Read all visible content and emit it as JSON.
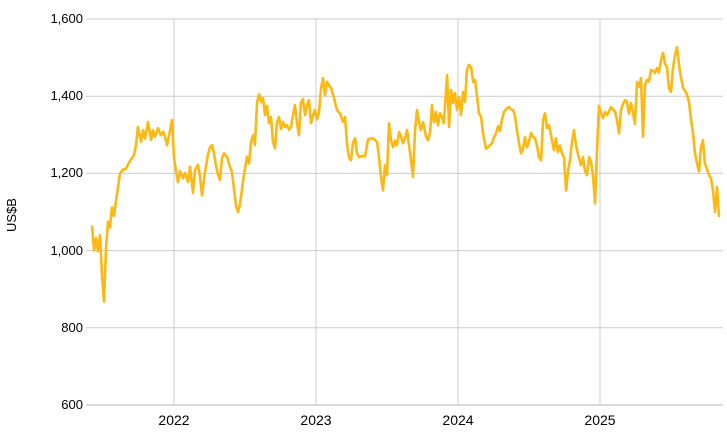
{
  "chart_data": {
    "type": "line",
    "title": "",
    "xlabel": "",
    "ylabel": "US$B",
    "ylim": [
      600,
      1600
    ],
    "xlim": [
      2021.38,
      2025.88
    ],
    "grid": true,
    "legend": false,
    "line_color": "#FCB813",
    "grid_color": "#cccccc",
    "axis_color": "#b5b5b5",
    "yticks": [
      {
        "label": "1,600",
        "value": 1600
      },
      {
        "label": "1,400",
        "value": 1400
      },
      {
        "label": "1,200",
        "value": 1200
      },
      {
        "label": "1,000",
        "value": 1000
      },
      {
        "label": "800",
        "value": 800
      },
      {
        "label": "600",
        "value": 600
      }
    ],
    "xticks": [
      {
        "label": "2022",
        "value": 2022
      },
      {
        "label": "2023",
        "value": 2023
      },
      {
        "label": "2024",
        "value": 2024
      },
      {
        "label": "2025",
        "value": 2025
      }
    ],
    "points": [
      [
        2021.423,
        1062
      ],
      [
        2021.437,
        1000
      ],
      [
        2021.451,
        1032
      ],
      [
        2021.465,
        998
      ],
      [
        2021.479,
        1040
      ],
      [
        2021.493,
        935
      ],
      [
        2021.507,
        868
      ],
      [
        2021.521,
        1005
      ],
      [
        2021.535,
        1075
      ],
      [
        2021.549,
        1060
      ],
      [
        2021.563,
        1112
      ],
      [
        2021.577,
        1090
      ],
      [
        2021.592,
        1130
      ],
      [
        2021.606,
        1165
      ],
      [
        2021.62,
        1200
      ],
      [
        2021.641,
        1210
      ],
      [
        2021.662,
        1212
      ],
      [
        2021.683,
        1228
      ],
      [
        2021.704,
        1240
      ],
      [
        2021.718,
        1247
      ],
      [
        2021.732,
        1272
      ],
      [
        2021.746,
        1320
      ],
      [
        2021.768,
        1282
      ],
      [
        2021.782,
        1312
      ],
      [
        2021.796,
        1290
      ],
      [
        2021.817,
        1333
      ],
      [
        2021.838,
        1287
      ],
      [
        2021.852,
        1312
      ],
      [
        2021.866,
        1295
      ],
      [
        2021.887,
        1317
      ],
      [
        2021.908,
        1299
      ],
      [
        2021.923,
        1308
      ],
      [
        2021.937,
        1294
      ],
      [
        2021.951,
        1273
      ],
      [
        2021.972,
        1310
      ],
      [
        2021.986,
        1338
      ],
      [
        2022.0,
        1240
      ],
      [
        2022.014,
        1207
      ],
      [
        2022.028,
        1177
      ],
      [
        2022.042,
        1206
      ],
      [
        2022.063,
        1187
      ],
      [
        2022.077,
        1201
      ],
      [
        2022.099,
        1178
      ],
      [
        2022.113,
        1217
      ],
      [
        2022.134,
        1150
      ],
      [
        2022.148,
        1209
      ],
      [
        2022.169,
        1222
      ],
      [
        2022.183,
        1191
      ],
      [
        2022.197,
        1143
      ],
      [
        2022.218,
        1204
      ],
      [
        2022.239,
        1248
      ],
      [
        2022.254,
        1269
      ],
      [
        2022.268,
        1273
      ],
      [
        2022.282,
        1252
      ],
      [
        2022.296,
        1220
      ],
      [
        2022.31,
        1196
      ],
      [
        2022.324,
        1183
      ],
      [
        2022.338,
        1240
      ],
      [
        2022.352,
        1252
      ],
      [
        2022.373,
        1243
      ],
      [
        2022.394,
        1217
      ],
      [
        2022.408,
        1204
      ],
      [
        2022.423,
        1157
      ],
      [
        2022.437,
        1115
      ],
      [
        2022.451,
        1100
      ],
      [
        2022.465,
        1120
      ],
      [
        2022.472,
        1139
      ],
      [
        2022.486,
        1180
      ],
      [
        2022.5,
        1212
      ],
      [
        2022.514,
        1243
      ],
      [
        2022.528,
        1226
      ],
      [
        2022.542,
        1280
      ],
      [
        2022.556,
        1299
      ],
      [
        2022.57,
        1273
      ],
      [
        2022.585,
        1385
      ],
      [
        2022.599,
        1405
      ],
      [
        2022.613,
        1385
      ],
      [
        2022.627,
        1395
      ],
      [
        2022.641,
        1351
      ],
      [
        2022.655,
        1375
      ],
      [
        2022.669,
        1330
      ],
      [
        2022.683,
        1346
      ],
      [
        2022.697,
        1281
      ],
      [
        2022.711,
        1265
      ],
      [
        2022.725,
        1330
      ],
      [
        2022.739,
        1346
      ],
      [
        2022.754,
        1315
      ],
      [
        2022.768,
        1333
      ],
      [
        2022.782,
        1320
      ],
      [
        2022.796,
        1325
      ],
      [
        2022.81,
        1313
      ],
      [
        2022.824,
        1320
      ],
      [
        2022.838,
        1351
      ],
      [
        2022.852,
        1377
      ],
      [
        2022.866,
        1330
      ],
      [
        2022.88,
        1299
      ],
      [
        2022.894,
        1382
      ],
      [
        2022.908,
        1393
      ],
      [
        2022.923,
        1351
      ],
      [
        2022.937,
        1377
      ],
      [
        2022.951,
        1390
      ],
      [
        2022.965,
        1330
      ],
      [
        2022.979,
        1351
      ],
      [
        2022.993,
        1364
      ],
      [
        2023.007,
        1340
      ],
      [
        2023.021,
        1358
      ],
      [
        2023.035,
        1420
      ],
      [
        2023.049,
        1447
      ],
      [
        2023.063,
        1402
      ],
      [
        2023.077,
        1437
      ],
      [
        2023.092,
        1428
      ],
      [
        2023.106,
        1421
      ],
      [
        2023.127,
        1395
      ],
      [
        2023.141,
        1373
      ],
      [
        2023.155,
        1360
      ],
      [
        2023.169,
        1356
      ],
      [
        2023.19,
        1333
      ],
      [
        2023.204,
        1346
      ],
      [
        2023.218,
        1278
      ],
      [
        2023.232,
        1242
      ],
      [
        2023.246,
        1234
      ],
      [
        2023.261,
        1280
      ],
      [
        2023.275,
        1291
      ],
      [
        2023.289,
        1252
      ],
      [
        2023.303,
        1242
      ],
      [
        2023.324,
        1245
      ],
      [
        2023.345,
        1244
      ],
      [
        2023.366,
        1288
      ],
      [
        2023.387,
        1291
      ],
      [
        2023.408,
        1289
      ],
      [
        2023.43,
        1281
      ],
      [
        2023.444,
        1242
      ],
      [
        2023.458,
        1190
      ],
      [
        2023.472,
        1156
      ],
      [
        2023.486,
        1221
      ],
      [
        2023.5,
        1195
      ],
      [
        2023.514,
        1330
      ],
      [
        2023.528,
        1286
      ],
      [
        2023.542,
        1268
      ],
      [
        2023.556,
        1285
      ],
      [
        2023.57,
        1273
      ],
      [
        2023.585,
        1307
      ],
      [
        2023.599,
        1295
      ],
      [
        2023.613,
        1278
      ],
      [
        2023.627,
        1291
      ],
      [
        2023.641,
        1312
      ],
      [
        2023.655,
        1273
      ],
      [
        2023.669,
        1235
      ],
      [
        2023.683,
        1191
      ],
      [
        2023.697,
        1310
      ],
      [
        2023.711,
        1364
      ],
      [
        2023.725,
        1335
      ],
      [
        2023.739,
        1312
      ],
      [
        2023.754,
        1333
      ],
      [
        2023.775,
        1294
      ],
      [
        2023.789,
        1286
      ],
      [
        2023.803,
        1304
      ],
      [
        2023.817,
        1377
      ],
      [
        2023.831,
        1333
      ],
      [
        2023.845,
        1359
      ],
      [
        2023.859,
        1325
      ],
      [
        2023.873,
        1356
      ],
      [
        2023.887,
        1346
      ],
      [
        2023.901,
        1330
      ],
      [
        2023.923,
        1455
      ],
      [
        2023.937,
        1320
      ],
      [
        2023.951,
        1416
      ],
      [
        2023.965,
        1382
      ],
      [
        2023.979,
        1408
      ],
      [
        2023.993,
        1364
      ],
      [
        2024.007,
        1397
      ],
      [
        2024.021,
        1351
      ],
      [
        2024.035,
        1411
      ],
      [
        2024.049,
        1385
      ],
      [
        2024.063,
        1468
      ],
      [
        2024.077,
        1481
      ],
      [
        2024.092,
        1476
      ],
      [
        2024.106,
        1437
      ],
      [
        2024.12,
        1442
      ],
      [
        2024.134,
        1400
      ],
      [
        2024.148,
        1355
      ],
      [
        2024.162,
        1348
      ],
      [
        2024.176,
        1304
      ],
      [
        2024.197,
        1264
      ],
      [
        2024.218,
        1270
      ],
      [
        2024.239,
        1278
      ],
      [
        2024.254,
        1294
      ],
      [
        2024.268,
        1305
      ],
      [
        2024.282,
        1322
      ],
      [
        2024.296,
        1310
      ],
      [
        2024.31,
        1340
      ],
      [
        2024.324,
        1360
      ],
      [
        2024.345,
        1369
      ],
      [
        2024.359,
        1372
      ],
      [
        2024.373,
        1366
      ],
      [
        2024.387,
        1364
      ],
      [
        2024.401,
        1351
      ],
      [
        2024.415,
        1312
      ],
      [
        2024.43,
        1278
      ],
      [
        2024.444,
        1252
      ],
      [
        2024.458,
        1264
      ],
      [
        2024.472,
        1294
      ],
      [
        2024.486,
        1268
      ],
      [
        2024.5,
        1282
      ],
      [
        2024.514,
        1305
      ],
      [
        2024.528,
        1295
      ],
      [
        2024.542,
        1291
      ],
      [
        2024.556,
        1272
      ],
      [
        2024.57,
        1242
      ],
      [
        2024.585,
        1234
      ],
      [
        2024.599,
        1338
      ],
      [
        2024.613,
        1356
      ],
      [
        2024.627,
        1317
      ],
      [
        2024.641,
        1325
      ],
      [
        2024.662,
        1286
      ],
      [
        2024.676,
        1260
      ],
      [
        2024.69,
        1291
      ],
      [
        2024.704,
        1255
      ],
      [
        2024.718,
        1272
      ],
      [
        2024.732,
        1252
      ],
      [
        2024.746,
        1242
      ],
      [
        2024.761,
        1156
      ],
      [
        2024.775,
        1208
      ],
      [
        2024.789,
        1234
      ],
      [
        2024.803,
        1281
      ],
      [
        2024.817,
        1312
      ],
      [
        2024.831,
        1273
      ],
      [
        2024.845,
        1250
      ],
      [
        2024.866,
        1221
      ],
      [
        2024.88,
        1242
      ],
      [
        2024.894,
        1208
      ],
      [
        2024.908,
        1195
      ],
      [
        2024.923,
        1242
      ],
      [
        2024.937,
        1228
      ],
      [
        2024.951,
        1195
      ],
      [
        2024.965,
        1122
      ],
      [
        2024.979,
        1260
      ],
      [
        2024.993,
        1375
      ],
      [
        2025.007,
        1356
      ],
      [
        2025.021,
        1343
      ],
      [
        2025.035,
        1359
      ],
      [
        2025.049,
        1351
      ],
      [
        2025.063,
        1360
      ],
      [
        2025.077,
        1372
      ],
      [
        2025.092,
        1366
      ],
      [
        2025.106,
        1359
      ],
      [
        2025.12,
        1338
      ],
      [
        2025.134,
        1304
      ],
      [
        2025.148,
        1364
      ],
      [
        2025.162,
        1380
      ],
      [
        2025.176,
        1390
      ],
      [
        2025.19,
        1385
      ],
      [
        2025.204,
        1355
      ],
      [
        2025.218,
        1382
      ],
      [
        2025.232,
        1359
      ],
      [
        2025.246,
        1328
      ],
      [
        2025.261,
        1437
      ],
      [
        2025.275,
        1424
      ],
      [
        2025.289,
        1447
      ],
      [
        2025.303,
        1295
      ],
      [
        2025.317,
        1429
      ],
      [
        2025.331,
        1442
      ],
      [
        2025.345,
        1438
      ],
      [
        2025.359,
        1468
      ],
      [
        2025.373,
        1466
      ],
      [
        2025.387,
        1460
      ],
      [
        2025.401,
        1473
      ],
      [
        2025.415,
        1462
      ],
      [
        2025.43,
        1494
      ],
      [
        2025.444,
        1512
      ],
      [
        2025.458,
        1484
      ],
      [
        2025.472,
        1475
      ],
      [
        2025.486,
        1420
      ],
      [
        2025.5,
        1411
      ],
      [
        2025.514,
        1473
      ],
      [
        2025.528,
        1506
      ],
      [
        2025.542,
        1527
      ],
      [
        2025.556,
        1481
      ],
      [
        2025.57,
        1450
      ],
      [
        2025.585,
        1421
      ],
      [
        2025.599,
        1414
      ],
      [
        2025.613,
        1404
      ],
      [
        2025.627,
        1385
      ],
      [
        2025.641,
        1340
      ],
      [
        2025.655,
        1304
      ],
      [
        2025.669,
        1252
      ],
      [
        2025.683,
        1226
      ],
      [
        2025.697,
        1205
      ],
      [
        2025.711,
        1268
      ],
      [
        2025.725,
        1286
      ],
      [
        2025.739,
        1226
      ],
      [
        2025.754,
        1210
      ],
      [
        2025.768,
        1195
      ],
      [
        2025.782,
        1187
      ],
      [
        2025.796,
        1156
      ],
      [
        2025.81,
        1100
      ],
      [
        2025.824,
        1165
      ],
      [
        2025.838,
        1090
      ]
    ]
  }
}
